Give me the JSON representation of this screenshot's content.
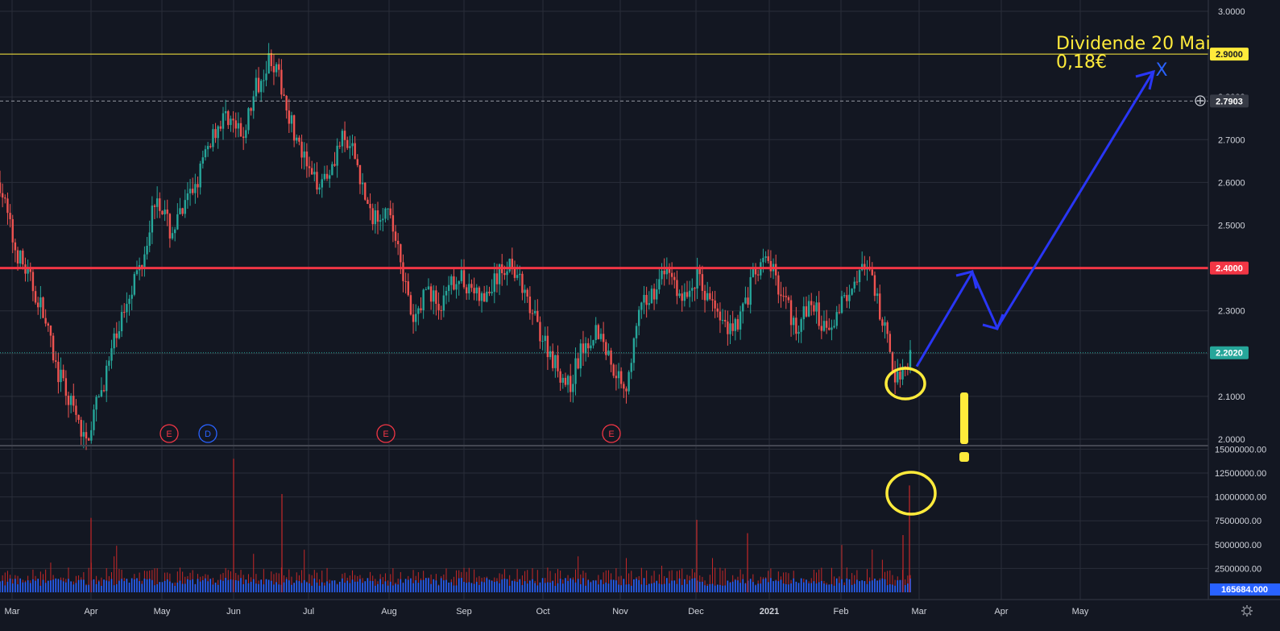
{
  "chart_data": {
    "type": "candlestick",
    "price_axis": {
      "ticks": [
        {
          "value": 3.0,
          "label": "3.0000"
        },
        {
          "value": 2.9,
          "label": "2.9000"
        },
        {
          "value": 2.8,
          "label": "2.8000"
        },
        {
          "value": 2.7,
          "label": "2.7000"
        },
        {
          "value": 2.6,
          "label": "2.6000"
        },
        {
          "value": 2.5,
          "label": "2.5000"
        },
        {
          "value": 2.4,
          "label": "2.4000"
        },
        {
          "value": 2.3,
          "label": "2.3000"
        },
        {
          "value": 2.2,
          "label": "2.2000"
        },
        {
          "value": 2.1,
          "label": "2.1000"
        },
        {
          "value": 2.0,
          "label": "2.0000"
        }
      ],
      "range": [
        1.985,
        3.02
      ]
    },
    "volume_axis": {
      "ticks": [
        {
          "value": 15000000,
          "label": "15000000.00"
        },
        {
          "value": 12500000,
          "label": "12500000.00"
        },
        {
          "value": 10000000,
          "label": "10000000.00"
        },
        {
          "value": 7500000,
          "label": "7500000.00"
        },
        {
          "value": 5000000,
          "label": "5000000.00"
        },
        {
          "value": 2500000,
          "label": "2500000.00"
        }
      ],
      "range": [
        0,
        15200000
      ]
    },
    "time_axis": [
      {
        "label": "Mar",
        "bold": false
      },
      {
        "label": "Apr",
        "bold": false
      },
      {
        "label": "May",
        "bold": false
      },
      {
        "label": "Jun",
        "bold": false
      },
      {
        "label": "Jul",
        "bold": false
      },
      {
        "label": "Aug",
        "bold": false
      },
      {
        "label": "Sep",
        "bold": false
      },
      {
        "label": "Oct",
        "bold": false
      },
      {
        "label": "Nov",
        "bold": false
      },
      {
        "label": "Dec",
        "bold": false
      },
      {
        "label": "2021",
        "bold": true
      },
      {
        "label": "Feb",
        "bold": false
      },
      {
        "label": "Mar",
        "bold": false
      },
      {
        "label": "Apr",
        "bold": false
      },
      {
        "label": "May",
        "bold": false
      }
    ],
    "horizontal_lines": [
      {
        "name": "yellow-level-line",
        "value": 2.9,
        "label": "2.9000",
        "color": "#ffeb3b",
        "tag_bg": "#ffeb3b",
        "tag_fg": "#131722",
        "style": "solid"
      },
      {
        "name": "red-resistance-line",
        "value": 2.4,
        "label": "2.4000",
        "color": "#f23645",
        "tag_bg": "#f23645",
        "tag_fg": "#ffffff",
        "style": "solid-thick"
      },
      {
        "name": "crosshair-level-line",
        "value": 2.7903,
        "label": "2.7903",
        "color": "#9598a1",
        "tag_bg": "#363a45",
        "tag_fg": "#ffffff",
        "style": "dashed"
      },
      {
        "name": "last-price-line",
        "value": 2.202,
        "label": "2.2020",
        "color": "#26a69a",
        "tag_bg": "#26a69a",
        "tag_fg": "#ffffff",
        "style": "dotted"
      }
    ],
    "volume_tag": {
      "value": 165684,
      "label": "165684.000",
      "bg": "#2962ff"
    },
    "price_path": [
      [
        "Mar",
        2.6
      ],
      [
        "Mar",
        2.45
      ],
      [
        "Mar",
        2.38
      ],
      [
        "Mar",
        2.3
      ],
      [
        "Mar",
        2.16
      ],
      [
        "Mar",
        2.08
      ],
      [
        "Mar",
        1.99
      ],
      [
        "Mar",
        2.1
      ],
      [
        "Apr",
        2.22
      ],
      [
        "Apr",
        2.34
      ],
      [
        "Apr",
        2.42
      ],
      [
        "Apr",
        2.58
      ],
      [
        "Apr",
        2.48
      ],
      [
        "May",
        2.54
      ],
      [
        "May",
        2.62
      ],
      [
        "May",
        2.72
      ],
      [
        "May",
        2.76
      ],
      [
        "May",
        2.7
      ],
      [
        "Jun",
        2.82
      ],
      [
        "Jun",
        2.9
      ],
      [
        "Jun",
        2.8
      ],
      [
        "Jun",
        2.68
      ],
      [
        "Jun",
        2.6
      ],
      [
        "Jul",
        2.62
      ],
      [
        "Jul",
        2.7
      ],
      [
        "Jul",
        2.66
      ],
      [
        "Jul",
        2.52
      ],
      [
        "Jul",
        2.54
      ],
      [
        "Jul",
        2.46
      ],
      [
        "Aug",
        2.26
      ],
      [
        "Aug",
        2.36
      ],
      [
        "Aug",
        2.3
      ],
      [
        "Aug",
        2.38
      ],
      [
        "Sep",
        2.36
      ],
      [
        "Sep",
        2.32
      ],
      [
        "Sep",
        2.38
      ],
      [
        "Sep",
        2.42
      ],
      [
        "Sep",
        2.32
      ],
      [
        "Sep",
        2.25
      ],
      [
        "Oct",
        2.18
      ],
      [
        "Oct",
        2.12
      ],
      [
        "Oct",
        2.22
      ],
      [
        "Oct",
        2.26
      ],
      [
        "Oct",
        2.18
      ],
      [
        "Nov",
        2.12
      ],
      [
        "Nov",
        2.3
      ],
      [
        "Nov",
        2.35
      ],
      [
        "Nov",
        2.4
      ],
      [
        "Nov",
        2.32
      ],
      [
        "Dec",
        2.38
      ],
      [
        "Dec",
        2.32
      ],
      [
        "Dec",
        2.26
      ],
      [
        "Dec",
        2.28
      ],
      [
        "2021",
        2.38
      ],
      [
        "2021",
        2.42
      ],
      [
        "2021",
        2.34
      ],
      [
        "2021",
        2.26
      ],
      [
        "Feb",
        2.32
      ],
      [
        "Feb",
        2.26
      ],
      [
        "Feb",
        2.3
      ],
      [
        "Feb",
        2.38
      ],
      [
        "Feb",
        2.4
      ],
      [
        "Feb",
        2.28
      ],
      [
        "Mar",
        2.14
      ],
      [
        "Mar",
        2.2
      ]
    ],
    "event_markers": [
      {
        "name": "earnings-marker-may",
        "label": "E",
        "color": "#f23645",
        "month": "May"
      },
      {
        "name": "dividend-marker-may",
        "label": "D",
        "color": "#2962ff",
        "month": "May"
      },
      {
        "name": "earnings-marker-aug",
        "label": "E",
        "color": "#f23645",
        "month": "Aug"
      },
      {
        "name": "earnings-marker-nov",
        "label": "E",
        "color": "#f23645",
        "month": "Nov"
      }
    ],
    "annotation": {
      "line1": "Dividende 20 Mai",
      "line2": "0,18€",
      "target_mark": "X"
    },
    "projection_path": [
      2.17,
      2.39,
      2.26,
      2.86
    ],
    "exclamation": "!"
  }
}
